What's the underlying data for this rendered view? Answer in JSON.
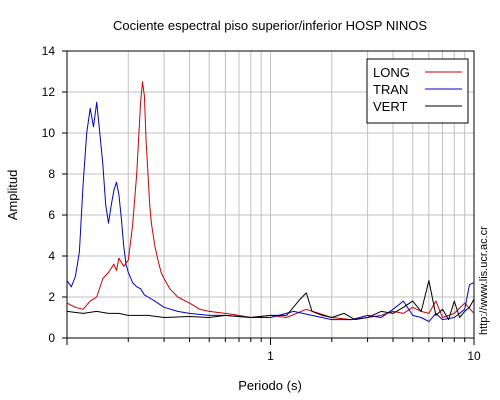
{
  "chart_data": {
    "type": "line",
    "title": "Cociente espectral piso superior/inferior  HOSP NINOS",
    "xlabel": "Periodo (s)",
    "ylabel": "Amplitud",
    "x_scale": "log",
    "xlim": [
      0.1,
      10
    ],
    "ylim": [
      0,
      14
    ],
    "x_tick_labels": [
      {
        "value": 1,
        "label": "1"
      },
      {
        "value": 10,
        "label": "10"
      }
    ],
    "y_ticks": [
      0,
      2,
      4,
      6,
      8,
      10,
      12,
      14
    ],
    "grid": true,
    "legend": "top-right",
    "watermark": "http://www.lis.ucr.ac.cr",
    "series": [
      {
        "name": "LONG",
        "color": "#cc0000",
        "x": [
          0.1,
          0.11,
          0.12,
          0.13,
          0.14,
          0.15,
          0.16,
          0.17,
          0.175,
          0.18,
          0.19,
          0.2,
          0.21,
          0.22,
          0.23,
          0.235,
          0.24,
          0.245,
          0.25,
          0.255,
          0.26,
          0.27,
          0.28,
          0.29,
          0.3,
          0.32,
          0.35,
          0.4,
          0.45,
          0.5,
          0.6,
          0.7,
          0.8,
          1.0,
          1.2,
          1.5,
          2.0,
          2.5,
          3.0,
          3.5,
          4.0,
          4.5,
          5.0,
          5.5,
          6.0,
          6.5,
          7.0,
          8.0,
          9.0,
          10.0
        ],
        "y": [
          1.7,
          1.5,
          1.4,
          1.8,
          2.0,
          2.9,
          3.2,
          3.6,
          3.3,
          3.9,
          3.5,
          3.8,
          5.5,
          8.0,
          11.5,
          12.5,
          11.8,
          9.5,
          8.0,
          6.5,
          5.6,
          4.5,
          3.8,
          3.2,
          2.9,
          2.4,
          2.0,
          1.7,
          1.4,
          1.3,
          1.2,
          1.1,
          1.0,
          1.1,
          1.0,
          1.4,
          1.0,
          0.9,
          1.0,
          1.1,
          1.3,
          1.2,
          1.5,
          1.3,
          1.2,
          1.8,
          1.0,
          1.2,
          1.7,
          1.2
        ]
      },
      {
        "name": "TRAN",
        "color": "#0000cc",
        "x": [
          0.1,
          0.105,
          0.11,
          0.115,
          0.12,
          0.125,
          0.13,
          0.135,
          0.14,
          0.145,
          0.15,
          0.155,
          0.16,
          0.165,
          0.17,
          0.175,
          0.18,
          0.185,
          0.19,
          0.195,
          0.2,
          0.21,
          0.22,
          0.23,
          0.24,
          0.25,
          0.27,
          0.3,
          0.35,
          0.4,
          0.5,
          0.6,
          0.8,
          1.0,
          1.3,
          1.6,
          2.0,
          2.5,
          3.0,
          3.5,
          4.0,
          4.5,
          5.0,
          5.5,
          6.0,
          6.5,
          7.0,
          8.0,
          9.0,
          9.5,
          10.0
        ],
        "y": [
          2.8,
          2.5,
          3.0,
          4.2,
          7.5,
          10.0,
          11.2,
          10.3,
          11.5,
          10.0,
          8.5,
          6.5,
          5.6,
          6.5,
          7.2,
          7.6,
          7.0,
          5.8,
          4.5,
          3.6,
          3.2,
          2.7,
          2.5,
          2.4,
          2.1,
          2.0,
          1.8,
          1.5,
          1.3,
          1.2,
          1.1,
          1.1,
          1.0,
          1.0,
          1.3,
          1.1,
          0.9,
          0.9,
          1.1,
          1.0,
          1.4,
          1.8,
          1.1,
          1.0,
          0.8,
          1.2,
          0.9,
          1.0,
          1.4,
          2.6,
          2.7
        ]
      },
      {
        "name": "VERT",
        "color": "#000000",
        "x": [
          0.1,
          0.12,
          0.14,
          0.16,
          0.18,
          0.2,
          0.25,
          0.3,
          0.4,
          0.5,
          0.6,
          0.8,
          1.0,
          1.2,
          1.4,
          1.5,
          1.6,
          1.8,
          2.0,
          2.3,
          2.6,
          3.0,
          3.5,
          4.0,
          4.5,
          5.0,
          5.5,
          6.0,
          6.5,
          7.0,
          7.5,
          8.0,
          8.5,
          9.0,
          9.5,
          10.0
        ],
        "y": [
          1.3,
          1.2,
          1.3,
          1.2,
          1.2,
          1.1,
          1.1,
          1.0,
          1.05,
          1.0,
          1.1,
          1.0,
          1.1,
          1.1,
          1.9,
          2.2,
          1.3,
          1.1,
          1.0,
          1.2,
          0.9,
          1.0,
          1.3,
          1.2,
          1.5,
          1.8,
          1.3,
          2.8,
          1.1,
          1.4,
          0.9,
          1.8,
          1.0,
          1.3,
          1.5,
          1.9
        ]
      }
    ]
  }
}
